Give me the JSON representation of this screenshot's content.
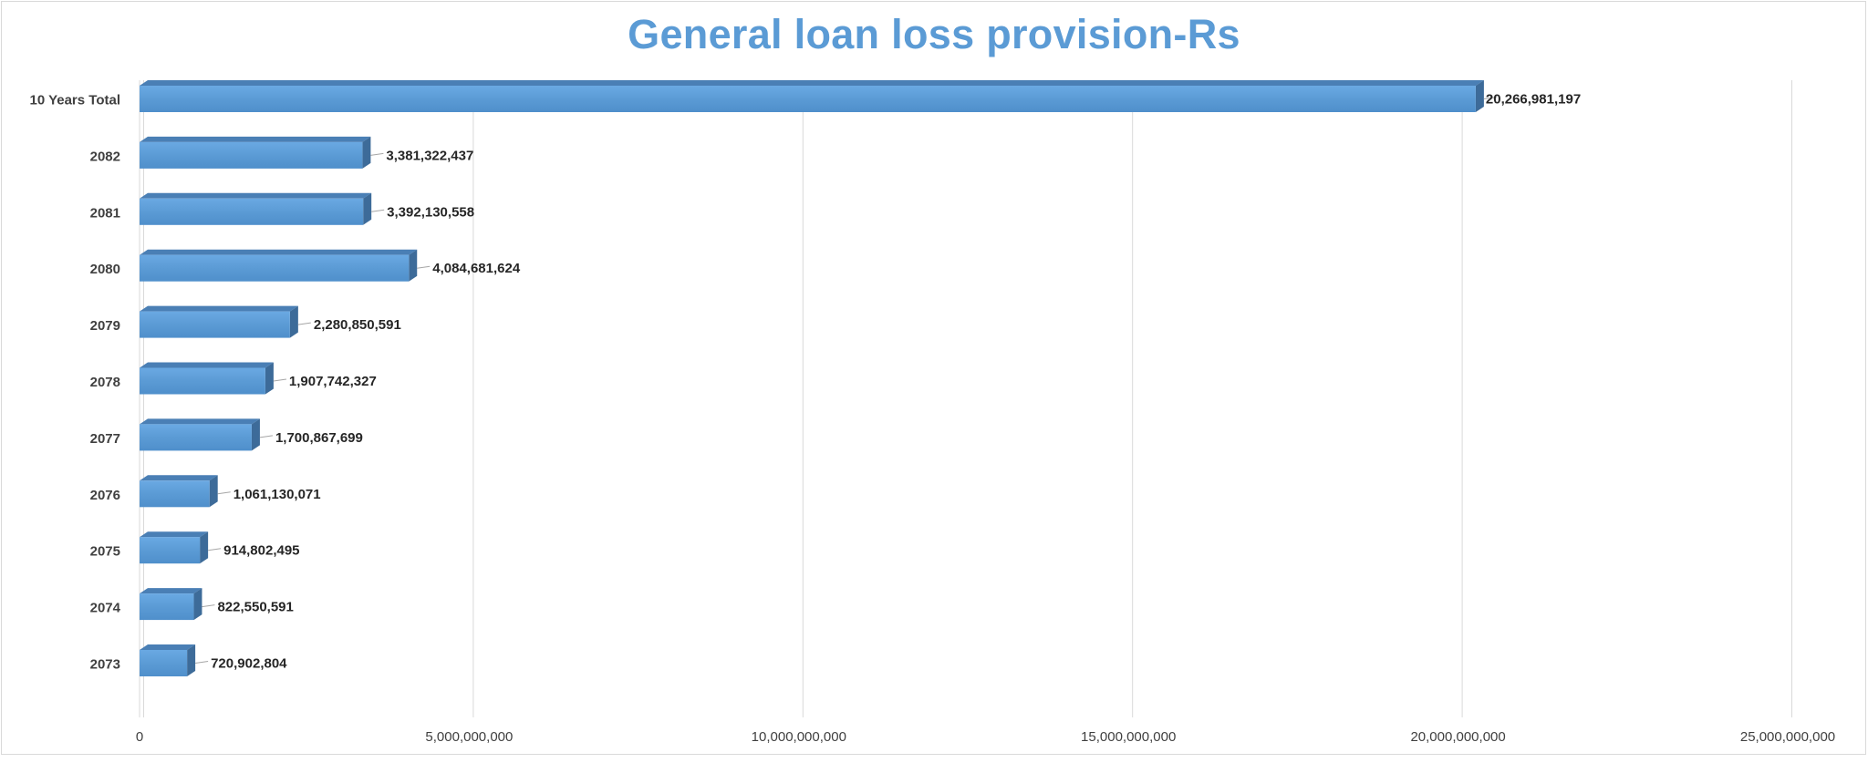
{
  "chart_data": {
    "type": "bar",
    "orientation": "horizontal",
    "title": "General loan loss provision-Rs",
    "categories": [
      "10 Years Total",
      "2082",
      "2081",
      "2080",
      "2079",
      "2078",
      "2077",
      "2076",
      "2075",
      "2074",
      "2073"
    ],
    "values": [
      20266981197,
      3381322437,
      3392130558,
      4084681624,
      2280850591,
      1907742327,
      1700867699,
      1061130071,
      914802495,
      822550591,
      720902804
    ],
    "data_labels": [
      "20,266,981,197",
      "3,381,322,437",
      "3,392,130,558",
      "4,084,681,624",
      "2,280,850,591",
      "1,907,742,327",
      "1,700,867,699",
      "1,061,130,071",
      "914,802,495",
      "822,550,591",
      "720,902,804"
    ],
    "xlim": [
      0,
      25000000000
    ],
    "xticks": [
      0,
      5000000000,
      10000000000,
      15000000000,
      20000000000,
      25000000000
    ],
    "xtick_labels": [
      "0",
      "5,000,000,000",
      "10,000,000,000",
      "15,000,000,000",
      "20,000,000,000",
      "25,000,000,000"
    ],
    "grid": "vertical",
    "legend": "none",
    "colors": {
      "bar_front": "#5b9bd5",
      "bar_top": "#4a7fb5",
      "bar_side": "#3d6b99",
      "title": "#5b9bd5",
      "grid": "#d9d9d9"
    }
  }
}
